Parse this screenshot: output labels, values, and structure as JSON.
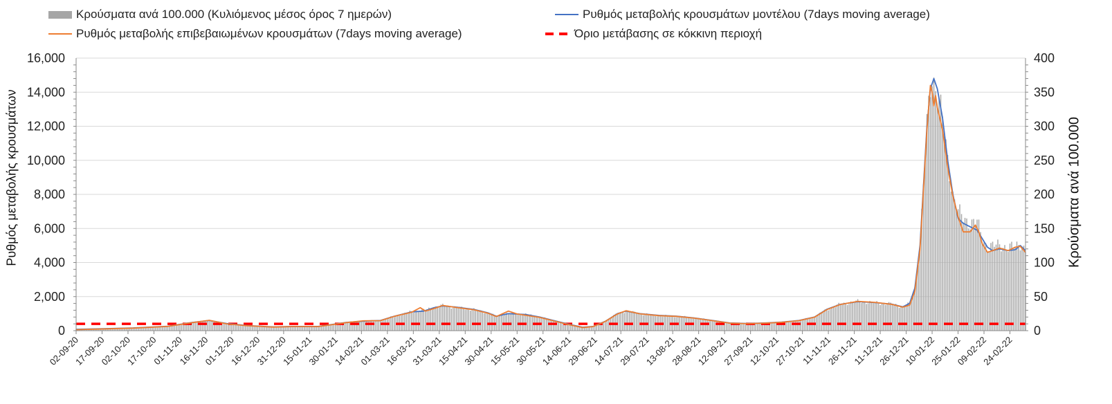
{
  "chart_data": {
    "type": "bar+line",
    "title": "",
    "legend": {
      "placement": "top",
      "items": [
        {
          "key": "bars",
          "label": "Κρούσματα ανά 100.000 (Κυλιόμενος μέσος όρος 7 ημερών)"
        },
        {
          "key": "model",
          "label": "Ρυθμός μεταβολής κρουσμάτων μοντέλου (7days moving average)"
        },
        {
          "key": "confirmed",
          "label": "Ρυθμός μεταβολής επιβεβαιωμένων κρουσμάτων (7days moving average)"
        },
        {
          "key": "threshold",
          "label": "Όριο μετάβασης σε κόκκινη περιοχή"
        }
      ]
    },
    "ylabel_left": "Ρυθμός μεταβολής κρουσμάτων",
    "ylabel_right": "Κρούσματα ανά 100.000",
    "ylim_left": [
      0,
      16000
    ],
    "ylim_right": [
      0,
      400
    ],
    "yticks_left": [
      "0",
      "2,000",
      "4,000",
      "6,000",
      "8,000",
      "10,000",
      "12,000",
      "14,000",
      "16,000"
    ],
    "yticks_right": [
      "0",
      "50",
      "100",
      "150",
      "200",
      "250",
      "300",
      "350",
      "400"
    ],
    "grid": true,
    "x_tick_labels": [
      "02-09-20",
      "17-09-20",
      "02-10-20",
      "17-10-20",
      "01-11-20",
      "16-11-20",
      "01-12-20",
      "16-12-20",
      "31-12-20",
      "15-01-21",
      "30-01-21",
      "14-02-21",
      "01-03-21",
      "16-03-21",
      "31-03-21",
      "15-04-21",
      "30-04-21",
      "15-05-21",
      "30-05-21",
      "14-06-21",
      "29-06-21",
      "14-07-21",
      "29-07-21",
      "13-08-21",
      "28-08-21",
      "12-09-21",
      "27-09-21",
      "12-10-21",
      "27-10-21",
      "11-11-21",
      "26-11-21",
      "11-12-21",
      "26-12-21",
      "10-01-22",
      "25-01-22",
      "09-02-22",
      "24-02-22"
    ],
    "x_range": [
      "02-09-20",
      "05-03-22"
    ],
    "threshold_value": 400,
    "model_keypoints": [
      [
        "02-09-20",
        80
      ],
      [
        "20-09-20",
        120
      ],
      [
        "05-10-20",
        160
      ],
      [
        "25-10-20",
        260
      ],
      [
        "08-11-20",
        480
      ],
      [
        "18-11-20",
        600
      ],
      [
        "28-11-20",
        420
      ],
      [
        "10-12-20",
        300
      ],
      [
        "25-12-20",
        220
      ],
      [
        "05-01-21",
        250
      ],
      [
        "20-01-21",
        250
      ],
      [
        "05-02-21",
        480
      ],
      [
        "15-02-21",
        560
      ],
      [
        "25-02-21",
        600
      ],
      [
        "05-03-21",
        850
      ],
      [
        "15-03-21",
        1100
      ],
      [
        "22-03-21",
        1150
      ],
      [
        "28-03-21",
        1350
      ],
      [
        "02-04-21",
        1450
      ],
      [
        "10-04-21",
        1380
      ],
      [
        "20-04-21",
        1250
      ],
      [
        "28-04-21",
        1050
      ],
      [
        "03-05-21",
        850
      ],
      [
        "10-05-21",
        1000
      ],
      [
        "20-05-21",
        950
      ],
      [
        "28-05-21",
        800
      ],
      [
        "05-06-21",
        600
      ],
      [
        "15-06-21",
        350
      ],
      [
        "22-06-21",
        200
      ],
      [
        "28-06-21",
        250
      ],
      [
        "05-07-21",
        550
      ],
      [
        "12-07-21",
        1000
      ],
      [
        "17-07-21",
        1150
      ],
      [
        "25-07-21",
        1000
      ],
      [
        "05-08-21",
        900
      ],
      [
        "15-08-21",
        850
      ],
      [
        "25-08-21",
        750
      ],
      [
        "05-09-21",
        600
      ],
      [
        "15-09-21",
        450
      ],
      [
        "25-09-21",
        420
      ],
      [
        "05-10-21",
        450
      ],
      [
        "15-10-21",
        500
      ],
      [
        "25-10-21",
        600
      ],
      [
        "03-11-21",
        800
      ],
      [
        "10-11-21",
        1250
      ],
      [
        "18-11-21",
        1550
      ],
      [
        "28-11-21",
        1700
      ],
      [
        "08-12-21",
        1650
      ],
      [
        "18-12-21",
        1550
      ],
      [
        "24-12-21",
        1400
      ],
      [
        "28-12-21",
        1600
      ],
      [
        "31-12-21",
        2500
      ],
      [
        "03-01-22",
        5000
      ],
      [
        "05-01-22",
        8500
      ],
      [
        "07-01-22",
        12000
      ],
      [
        "09-01-22",
        14200
      ],
      [
        "11-01-22",
        14800
      ],
      [
        "13-01-22",
        14200
      ],
      [
        "16-01-22",
        12500
      ],
      [
        "19-01-22",
        10000
      ],
      [
        "22-01-22",
        8000
      ],
      [
        "25-01-22",
        6600
      ],
      [
        "28-01-22",
        6300
      ],
      [
        "01-02-22",
        6100
      ],
      [
        "05-02-22",
        5900
      ],
      [
        "08-02-22",
        5400
      ],
      [
        "11-02-22",
        4900
      ],
      [
        "14-02-22",
        4700
      ],
      [
        "18-02-22",
        4800
      ],
      [
        "23-02-22",
        4700
      ],
      [
        "27-02-22",
        4750
      ],
      [
        "02-03-22",
        5000
      ],
      [
        "05-03-22",
        4700
      ]
    ],
    "confirmed_keypoints": [
      [
        "02-09-20",
        60
      ],
      [
        "20-09-20",
        110
      ],
      [
        "05-10-20",
        150
      ],
      [
        "25-10-20",
        250
      ],
      [
        "08-11-20",
        470
      ],
      [
        "18-11-20",
        610
      ],
      [
        "28-11-20",
        400
      ],
      [
        "10-12-20",
        290
      ],
      [
        "25-12-20",
        210
      ],
      [
        "05-01-21",
        240
      ],
      [
        "20-01-21",
        240
      ],
      [
        "05-02-21",
        470
      ],
      [
        "15-02-21",
        580
      ],
      [
        "25-02-21",
        590
      ],
      [
        "05-03-21",
        840
      ],
      [
        "15-03-21",
        1080
      ],
      [
        "20-03-21",
        1350
      ],
      [
        "23-03-21",
        1150
      ],
      [
        "28-03-21",
        1300
      ],
      [
        "02-04-21",
        1480
      ],
      [
        "10-04-21",
        1360
      ],
      [
        "20-04-21",
        1230
      ],
      [
        "28-04-21",
        1030
      ],
      [
        "03-05-21",
        830
      ],
      [
        "10-05-21",
        1150
      ],
      [
        "15-05-21",
        980
      ],
      [
        "28-05-21",
        780
      ],
      [
        "05-06-21",
        580
      ],
      [
        "15-06-21",
        330
      ],
      [
        "22-06-21",
        180
      ],
      [
        "28-06-21",
        240
      ],
      [
        "05-07-21",
        540
      ],
      [
        "12-07-21",
        980
      ],
      [
        "17-07-21",
        1170
      ],
      [
        "25-07-21",
        990
      ],
      [
        "05-08-21",
        880
      ],
      [
        "15-08-21",
        840
      ],
      [
        "25-08-21",
        740
      ],
      [
        "05-09-21",
        590
      ],
      [
        "15-09-21",
        440
      ],
      [
        "25-09-21",
        410
      ],
      [
        "05-10-21",
        440
      ],
      [
        "15-10-21",
        490
      ],
      [
        "25-10-21",
        590
      ],
      [
        "03-11-21",
        790
      ],
      [
        "10-11-21",
        1230
      ],
      [
        "18-11-21",
        1540
      ],
      [
        "28-11-21",
        1720
      ],
      [
        "08-12-21",
        1660
      ],
      [
        "18-12-21",
        1540
      ],
      [
        "24-12-21",
        1380
      ],
      [
        "28-12-21",
        1500
      ],
      [
        "31-12-21",
        2300
      ],
      [
        "03-01-22",
        4800
      ],
      [
        "05-01-22",
        8300
      ],
      [
        "07-01-22",
        11800
      ],
      [
        "09-01-22",
        14400
      ],
      [
        "10-01-22",
        14000
      ],
      [
        "11-01-22",
        13200
      ],
      [
        "12-01-22",
        13800
      ],
      [
        "13-01-22",
        13100
      ],
      [
        "16-01-22",
        11800
      ],
      [
        "19-01-22",
        9600
      ],
      [
        "22-01-22",
        7900
      ],
      [
        "25-01-22",
        6700
      ],
      [
        "28-01-22",
        5800
      ],
      [
        "01-02-22",
        5800
      ],
      [
        "04-02-22",
        6200
      ],
      [
        "06-02-22",
        5800
      ],
      [
        "08-02-22",
        5100
      ],
      [
        "11-02-22",
        4600
      ],
      [
        "14-02-22",
        4700
      ],
      [
        "18-02-22",
        4850
      ],
      [
        "23-02-22",
        4700
      ],
      [
        "27-02-22",
        4900
      ],
      [
        "02-03-22",
        4950
      ],
      [
        "05-03-22",
        4600
      ]
    ],
    "bars_keypoints": [
      [
        "02-09-20",
        1.5
      ],
      [
        "20-09-20",
        3
      ],
      [
        "05-10-20",
        4
      ],
      [
        "25-10-20",
        6.5
      ],
      [
        "08-11-20",
        12
      ],
      [
        "18-11-20",
        15
      ],
      [
        "28-11-20",
        10
      ],
      [
        "10-12-20",
        7.5
      ],
      [
        "25-12-20",
        5.5
      ],
      [
        "05-01-21",
        6
      ],
      [
        "20-01-21",
        6
      ],
      [
        "05-02-21",
        12
      ],
      [
        "15-02-21",
        14
      ],
      [
        "25-02-21",
        15
      ],
      [
        "05-03-21",
        21
      ],
      [
        "15-03-21",
        28
      ],
      [
        "22-03-21",
        30
      ],
      [
        "28-03-21",
        34
      ],
      [
        "02-04-21",
        37
      ],
      [
        "10-04-21",
        34
      ],
      [
        "20-04-21",
        31
      ],
      [
        "28-04-21",
        26
      ],
      [
        "03-05-21",
        21
      ],
      [
        "10-05-21",
        26
      ],
      [
        "20-05-21",
        24
      ],
      [
        "28-05-21",
        20
      ],
      [
        "05-06-21",
        15
      ],
      [
        "15-06-21",
        8.5
      ],
      [
        "22-06-21",
        5
      ],
      [
        "28-06-21",
        6
      ],
      [
        "05-07-21",
        14
      ],
      [
        "12-07-21",
        25
      ],
      [
        "17-07-21",
        29
      ],
      [
        "25-07-21",
        25
      ],
      [
        "05-08-21",
        22
      ],
      [
        "15-08-21",
        21
      ],
      [
        "25-08-21",
        19
      ],
      [
        "05-09-21",
        15
      ],
      [
        "15-09-21",
        11
      ],
      [
        "25-09-21",
        10
      ],
      [
        "05-10-21",
        11
      ],
      [
        "15-10-21",
        12.5
      ],
      [
        "25-10-21",
        15
      ],
      [
        "03-11-21",
        20
      ],
      [
        "10-11-21",
        31
      ],
      [
        "18-11-21",
        39
      ],
      [
        "28-11-21",
        43
      ],
      [
        "08-12-21",
        41
      ],
      [
        "18-12-21",
        39
      ],
      [
        "24-12-21",
        35
      ],
      [
        "28-12-21",
        40
      ],
      [
        "31-12-21",
        62
      ],
      [
        "03-01-22",
        125
      ],
      [
        "05-01-22",
        215
      ],
      [
        "07-01-22",
        300
      ],
      [
        "09-01-22",
        360
      ],
      [
        "10-01-22",
        375
      ],
      [
        "11-01-22",
        365
      ],
      [
        "13-01-22",
        350
      ],
      [
        "16-01-22",
        310
      ],
      [
        "19-01-22",
        250
      ],
      [
        "22-01-22",
        200
      ],
      [
        "25-01-22",
        175
      ],
      [
        "28-01-22",
        165
      ],
      [
        "01-02-22",
        158
      ],
      [
        "05-02-22",
        160
      ],
      [
        "08-02-22",
        135
      ],
      [
        "11-02-22",
        122
      ],
      [
        "14-02-22",
        124
      ],
      [
        "18-02-22",
        127
      ],
      [
        "23-02-22",
        120
      ],
      [
        "27-02-22",
        125
      ],
      [
        "02-03-22",
        128
      ],
      [
        "05-03-22",
        116
      ]
    ]
  }
}
